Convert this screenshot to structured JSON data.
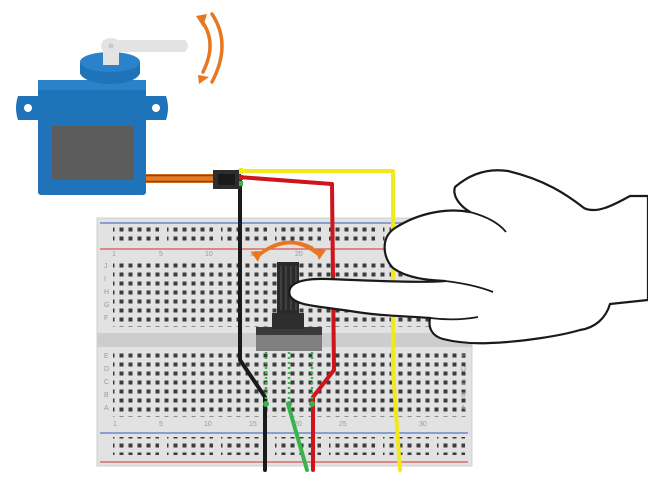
{
  "breadboard": {
    "top_numbers": [
      "1",
      "5",
      "10",
      "15",
      "20"
    ],
    "bottom_numbers": [
      "1",
      "5",
      "10",
      "15",
      "20",
      "25",
      "30"
    ],
    "left_letters_top": [
      "J",
      "I",
      "H",
      "G",
      "F"
    ],
    "left_letters_bottom": [
      "E",
      "D",
      "C",
      "B",
      "A"
    ],
    "right_letters_bottom": [
      "E",
      "D",
      "C",
      "B",
      "A"
    ]
  },
  "colors": {
    "servo_blue": "#1f73b9",
    "servo_horn": "#e3e3e3",
    "motion_arrow": "#e87722",
    "wire_red": "#d0141b",
    "wire_yellow": "#f2e81c",
    "wire_black": "#1a1a1a",
    "wire_green": "#37b44a",
    "rail_red": "#d9534f",
    "rail_blue": "#4f79c6"
  },
  "icons": [
    "servo-motor-icon",
    "potentiometer-icon",
    "hand-icon",
    "rotation-arrow-icon"
  ]
}
